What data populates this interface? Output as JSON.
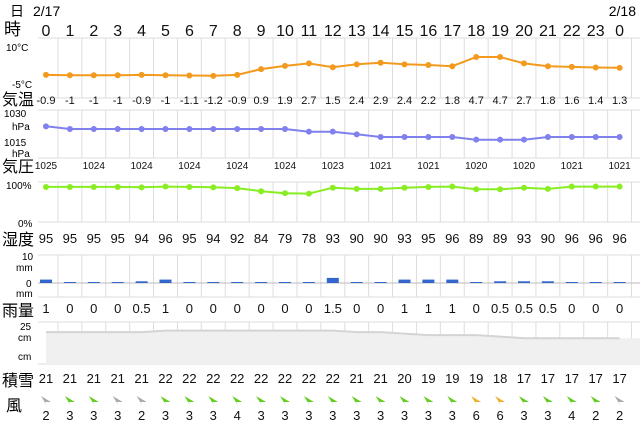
{
  "dates": {
    "left": "2/17",
    "right": "2/18"
  },
  "labels": {
    "day": "日",
    "hour": "時",
    "temp": "気温",
    "pressure": "気圧",
    "humidity": "湿度",
    "precip": "雨量",
    "snow": "積雪",
    "wind": "風"
  },
  "axis_labels": {
    "temp_top": "10°C",
    "temp_bottom": "-5°C",
    "pres_top_1": "1030",
    "pres_top_2": "hPa",
    "pres_bottom_1": "1015",
    "pres_bottom_2": "hPa",
    "hum_top": "100%",
    "hum_bottom": "0%",
    "precip_top_1": "10",
    "precip_top_2": "mm",
    "precip_mid": "0",
    "precip_bottom": "mm",
    "snow_top": "25",
    "snow_top_unit": "cm",
    "snow_bottom_unit": "cm"
  },
  "colors": {
    "temp": "#f39a1e",
    "pressure": "#8080ee",
    "humidity": "#88ee22",
    "precip": "#3366cc",
    "snow": "#d4d4d4",
    "grid": "#dddddd",
    "wind_green": "#66cc22",
    "wind_gray": "#aaaaaa",
    "wind_orange": "#f0b030"
  },
  "chart_data": {
    "type": "line",
    "x": [
      "0",
      "1",
      "2",
      "3",
      "4",
      "5",
      "6",
      "7",
      "8",
      "9",
      "10",
      "11",
      "12",
      "13",
      "14",
      "15",
      "16",
      "17",
      "18",
      "19",
      "20",
      "21",
      "22",
      "23",
      "0"
    ],
    "series": [
      {
        "name": "気温",
        "unit": "°C",
        "ylim": [
          -5,
          10
        ],
        "values": [
          -0.9,
          -1,
          -1,
          -1,
          -0.9,
          -1,
          -1.1,
          -1.2,
          -0.9,
          0.9,
          1.9,
          2.7,
          1.5,
          2.4,
          2.9,
          2.4,
          2.2,
          1.8,
          4.7,
          4.7,
          2.7,
          1.8,
          1.6,
          1.4,
          1.3
        ],
        "labels": [
          "-0.9",
          "-1",
          "-1",
          "-1",
          "-0.9",
          "-1",
          "-1.1",
          "-1.2",
          "-0.9",
          "0.9",
          "1.9",
          "2.7",
          "1.5",
          "2.4",
          "2.9",
          "2.4",
          "2.2",
          "1.8",
          "4.7",
          "4.7",
          "2.7",
          "1.8",
          "1.6",
          "1.4",
          "1.3"
        ]
      },
      {
        "name": "気圧",
        "unit": "hPa",
        "ylim": [
          1015,
          1030
        ],
        "values": [
          1025,
          1024,
          1024,
          1024,
          1024,
          1024,
          1024,
          1024,
          1024,
          1024,
          1024,
          1023,
          1023,
          1022,
          1021,
          1021,
          1021,
          1021,
          1020,
          1020,
          1020,
          1021,
          1021,
          1021,
          1021
        ],
        "labels": [
          "1025",
          "",
          "1024",
          "",
          "1024",
          "",
          "1024",
          "",
          "1024",
          "",
          "1024",
          "",
          "1023",
          "",
          "1021",
          "",
          "1021",
          "",
          "1020",
          "",
          "1020",
          "",
          "1021",
          "",
          "1021"
        ]
      },
      {
        "name": "湿度",
        "unit": "%",
        "ylim": [
          0,
          100
        ],
        "values": [
          95,
          95,
          95,
          95,
          94,
          96,
          95,
          94,
          92,
          84,
          79,
          78,
          93,
          90,
          90,
          93,
          95,
          96,
          89,
          89,
          93,
          90,
          96,
          96,
          96
        ],
        "labels": [
          "95",
          "95",
          "95",
          "95",
          "94",
          "96",
          "95",
          "94",
          "92",
          "84",
          "79",
          "78",
          "93",
          "90",
          "90",
          "93",
          "95",
          "96",
          "89",
          "89",
          "93",
          "90",
          "96",
          "96",
          "96"
        ]
      },
      {
        "name": "雨量",
        "unit": "mm",
        "ylim": [
          0,
          10
        ],
        "values": [
          1,
          0,
          0,
          0,
          0.5,
          1,
          0,
          0,
          0,
          0,
          0,
          0,
          1.5,
          0,
          0,
          1,
          1,
          1,
          0,
          0.5,
          0.5,
          0.5,
          0,
          0,
          0
        ],
        "labels": [
          "1",
          "0",
          "0",
          "0",
          "0.5",
          "1",
          "0",
          "0",
          "0",
          "0",
          "0",
          "0",
          "1.5",
          "0",
          "0",
          "1",
          "1",
          "1",
          "0",
          "0.5",
          "0.5",
          "0.5",
          "0",
          "0",
          "0"
        ]
      },
      {
        "name": "積雪",
        "unit": "cm",
        "ylim": [
          0,
          25
        ],
        "values": [
          21,
          21,
          21,
          21,
          21,
          22,
          22,
          22,
          22,
          22,
          22,
          22,
          22,
          21,
          21,
          20,
          19,
          19,
          19,
          18,
          17,
          17,
          17,
          17,
          17
        ],
        "labels": [
          "21",
          "21",
          "21",
          "21",
          "21",
          "22",
          "22",
          "22",
          "22",
          "22",
          "22",
          "22",
          "22",
          "21",
          "21",
          "20",
          "19",
          "19",
          "19",
          "18",
          "17",
          "17",
          "17",
          "17",
          "17"
        ]
      }
    ],
    "wind": {
      "speeds": [
        "2",
        "3",
        "3",
        "3",
        "2",
        "3",
        "3",
        "3",
        "4",
        "3",
        "3",
        "3",
        "3",
        "3",
        "3",
        "3",
        "3",
        "3",
        "6",
        "6",
        "3",
        "3",
        "4",
        "2",
        "2"
      ],
      "arrow_colors": [
        "gray",
        "green",
        "green",
        "gray",
        "gray",
        "green",
        "green",
        "green",
        "green",
        "green",
        "green",
        "green",
        "green",
        "green",
        "green",
        "green",
        "green",
        "green",
        "orange",
        "orange",
        "green",
        "green",
        "green",
        "green",
        "gray"
      ]
    }
  }
}
